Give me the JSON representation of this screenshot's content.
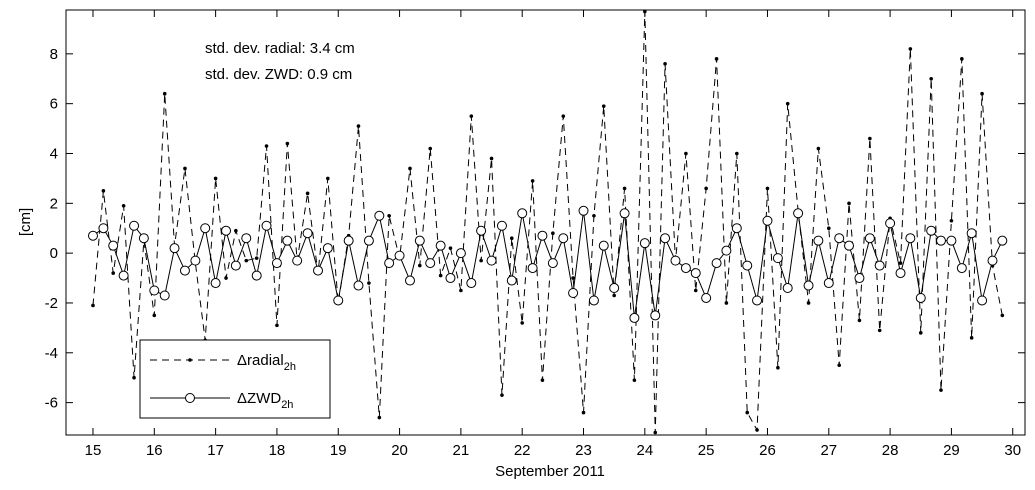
{
  "chart_data": {
    "type": "line",
    "xlabel": "September 2011",
    "ylabel": "[cm]",
    "annotations": [
      "std. dev. radial: 3.4 cm",
      "std. dev. ZWD: 0.9 cm"
    ],
    "x": [
      15,
      15.17,
      15.33,
      15.5,
      15.67,
      15.83,
      16,
      16.17,
      16.33,
      16.5,
      16.67,
      16.83,
      17,
      17.17,
      17.33,
      17.5,
      17.67,
      17.83,
      18,
      18.17,
      18.33,
      18.5,
      18.67,
      18.83,
      19,
      19.17,
      19.33,
      19.5,
      19.67,
      19.83,
      20,
      20.17,
      20.33,
      20.5,
      20.67,
      20.83,
      21,
      21.17,
      21.33,
      21.5,
      21.67,
      21.83,
      22,
      22.17,
      22.33,
      22.5,
      22.67,
      22.83,
      23,
      23.17,
      23.33,
      23.5,
      23.67,
      23.83,
      24,
      24.17,
      24.33,
      24.5,
      24.67,
      24.83,
      25,
      25.17,
      25.33,
      25.5,
      25.67,
      25.83,
      26,
      26.17,
      26.33,
      26.5,
      26.67,
      26.83,
      27,
      27.17,
      27.33,
      27.5,
      27.67,
      27.83,
      28,
      28.17,
      28.33,
      28.5,
      28.67,
      28.83,
      29,
      29.17,
      29.33,
      29.5,
      29.67,
      29.83
    ],
    "series": [
      {
        "name": "Δradial",
        "name_subscript": "2h",
        "color": "#000000",
        "style": "dashed",
        "marker": "dot",
        "values": [
          -2.1,
          2.5,
          -0.8,
          1.9,
          -5.0,
          0.5,
          -2.5,
          6.4,
          0.3,
          3.4,
          -0.4,
          -3.5,
          3.0,
          -1.0,
          0.9,
          -0.3,
          -0.2,
          4.3,
          -2.9,
          4.4,
          -0.3,
          2.4,
          -0.8,
          3.0,
          -2.0,
          0.7,
          5.1,
          -1.2,
          -6.6,
          1.5,
          -0.2,
          3.4,
          -0.5,
          4.2,
          -0.9,
          0.2,
          -1.5,
          5.5,
          -0.3,
          3.8,
          -5.7,
          0.6,
          -2.8,
          2.9,
          -5.1,
          0.8,
          5.5,
          -1.0,
          -6.4,
          1.5,
          5.9,
          -1.7,
          2.6,
          -5.1,
          9.7,
          -7.2,
          7.6,
          -0.3,
          4.0,
          -1.5,
          2.6,
          7.8,
          -2.0,
          4.0,
          -6.4,
          -7.1,
          2.6,
          -4.6,
          6.0,
          1.7,
          -2.0,
          4.2,
          1.0,
          -4.5,
          2.0,
          -2.7,
          4.6,
          -3.1,
          1.4,
          -0.4,
          8.2,
          -3.2,
          7.0,
          -5.5,
          1.3,
          7.8,
          -3.4,
          6.4,
          -0.5,
          -2.5
        ]
      },
      {
        "name": "ΔZWD",
        "name_subscript": "2h",
        "color": "#000000",
        "style": "solid",
        "marker": "circle",
        "values": [
          0.7,
          1.0,
          0.3,
          -0.9,
          1.1,
          0.6,
          -1.5,
          -1.7,
          0.2,
          -0.7,
          -0.3,
          1.0,
          -1.2,
          0.9,
          -0.5,
          0.6,
          -0.9,
          1.1,
          -0.4,
          0.5,
          -0.3,
          0.8,
          -0.7,
          0.2,
          -1.9,
          0.5,
          -1.3,
          0.5,
          1.5,
          -0.4,
          -0.1,
          -1.1,
          0.5,
          -0.4,
          0.3,
          -1.0,
          0.0,
          -1.2,
          0.9,
          -0.3,
          1.1,
          -1.1,
          1.6,
          -0.6,
          0.7,
          -0.4,
          0.6,
          -1.6,
          1.7,
          -1.9,
          0.3,
          -1.4,
          1.6,
          -2.6,
          0.4,
          -2.5,
          0.6,
          -0.3,
          -0.6,
          -0.8,
          -1.8,
          -0.4,
          0.1,
          1.0,
          -0.5,
          -1.9,
          1.3,
          -0.2,
          -1.4,
          1.6,
          -1.3,
          0.5,
          -1.2,
          0.6,
          0.3,
          -1.0,
          0.6,
          -0.5,
          1.2,
          -0.8,
          0.6,
          -1.8,
          0.9,
          0.5,
          0.5,
          -0.6,
          0.8,
          -1.9,
          -0.3,
          0.5
        ]
      }
    ],
    "xlim": [
      14.56,
      30.2
    ],
    "ylim": [
      -7.3,
      9.76
    ],
    "xticks": [
      15,
      16,
      17,
      18,
      19,
      20,
      21,
      22,
      23,
      24,
      25,
      26,
      27,
      28,
      29,
      30
    ],
    "yticks": [
      -6,
      -4,
      -2,
      0,
      2,
      4,
      6,
      8
    ],
    "grid": false,
    "legend": "lower left"
  }
}
